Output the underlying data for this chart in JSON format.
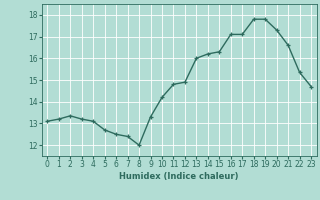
{
  "x": [
    0,
    1,
    2,
    3,
    4,
    5,
    6,
    7,
    8,
    9,
    10,
    11,
    12,
    13,
    14,
    15,
    16,
    17,
    18,
    19,
    20,
    21,
    22,
    23
  ],
  "y": [
    13.1,
    13.2,
    13.35,
    13.2,
    13.1,
    12.7,
    12.5,
    12.4,
    12.0,
    13.3,
    14.2,
    14.8,
    14.9,
    16.0,
    16.2,
    16.3,
    17.1,
    17.1,
    17.8,
    17.8,
    17.3,
    16.6,
    15.35,
    14.7
  ],
  "line_color": "#2e6b5e",
  "marker": "+",
  "marker_size": 3,
  "bg_color": "#b2ddd4",
  "grid_color": "#ffffff",
  "xlabel": "Humidex (Indice chaleur)",
  "xlim": [
    -0.5,
    23.5
  ],
  "ylim": [
    11.5,
    18.5
  ],
  "yticks": [
    12,
    13,
    14,
    15,
    16,
    17,
    18
  ],
  "xticks": [
    0,
    1,
    2,
    3,
    4,
    5,
    6,
    7,
    8,
    9,
    10,
    11,
    12,
    13,
    14,
    15,
    16,
    17,
    18,
    19,
    20,
    21,
    22,
    23
  ],
  "label_fontsize": 6,
  "tick_fontsize": 5.5,
  "line_width": 1.0,
  "marker_edge_width": 0.9
}
